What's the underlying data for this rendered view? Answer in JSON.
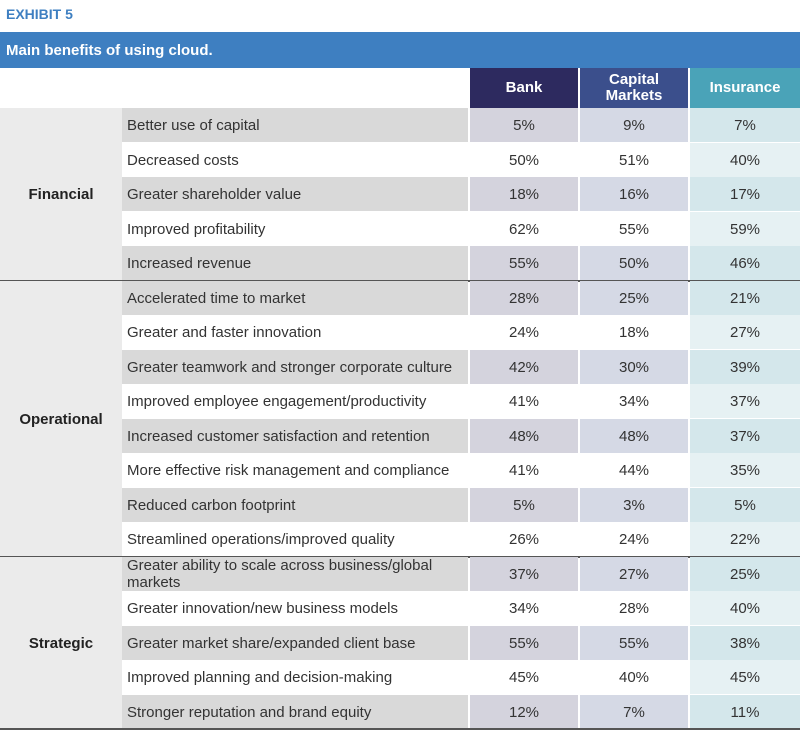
{
  "exhibit_label": "EXHIBIT 5",
  "subtitle": "Main benefits of using cloud.",
  "colors": {
    "accent_blue": "#3e7fc1",
    "bank": "#2d2a5f",
    "capital_markets": "#3b4f8c",
    "insurance": "#4aa3b8"
  },
  "chart_data": {
    "type": "table",
    "columns": [
      "Bank",
      "Capital Markets",
      "Insurance"
    ],
    "groups": [
      {
        "name": "Financial",
        "rows": [
          {
            "label": "Better use of capital",
            "values": [
              "5%",
              "9%",
              "7%"
            ]
          },
          {
            "label": "Decreased costs",
            "values": [
              "50%",
              "51%",
              "40%"
            ]
          },
          {
            "label": "Greater shareholder value",
            "values": [
              "18%",
              "16%",
              "17%"
            ]
          },
          {
            "label": "Improved profitability",
            "values": [
              "62%",
              "55%",
              "59%"
            ]
          },
          {
            "label": "Increased revenue",
            "values": [
              "55%",
              "50%",
              "46%"
            ]
          }
        ]
      },
      {
        "name": "Operational",
        "rows": [
          {
            "label": "Accelerated time to market",
            "values": [
              "28%",
              "25%",
              "21%"
            ]
          },
          {
            "label": "Greater and faster innovation",
            "values": [
              "24%",
              "18%",
              "27%"
            ]
          },
          {
            "label": "Greater teamwork and stronger corporate culture",
            "values": [
              "42%",
              "30%",
              "39%"
            ]
          },
          {
            "label": "Improved employee engagement/productivity",
            "values": [
              "41%",
              "34%",
              "37%"
            ]
          },
          {
            "label": "Increased customer satisfaction and retention",
            "values": [
              "48%",
              "48%",
              "37%"
            ]
          },
          {
            "label": "More effective risk management and compliance",
            "values": [
              "41%",
              "44%",
              "35%"
            ]
          },
          {
            "label": "Reduced carbon footprint",
            "values": [
              "5%",
              "3%",
              "5%"
            ]
          },
          {
            "label": "Streamlined operations/improved quality",
            "values": [
              "26%",
              "24%",
              "22%"
            ]
          }
        ]
      },
      {
        "name": "Strategic",
        "rows": [
          {
            "label": "Greater ability to scale across business/global markets",
            "values": [
              "37%",
              "27%",
              "25%"
            ]
          },
          {
            "label": "Greater innovation/new business models",
            "values": [
              "34%",
              "28%",
              "40%"
            ]
          },
          {
            "label": "Greater market share/expanded client base",
            "values": [
              "55%",
              "55%",
              "38%"
            ]
          },
          {
            "label": "Improved planning and decision-making",
            "values": [
              "45%",
              "40%",
              "45%"
            ]
          },
          {
            "label": "Stronger reputation and brand equity",
            "values": [
              "12%",
              "7%",
              "11%"
            ]
          }
        ]
      }
    ]
  }
}
